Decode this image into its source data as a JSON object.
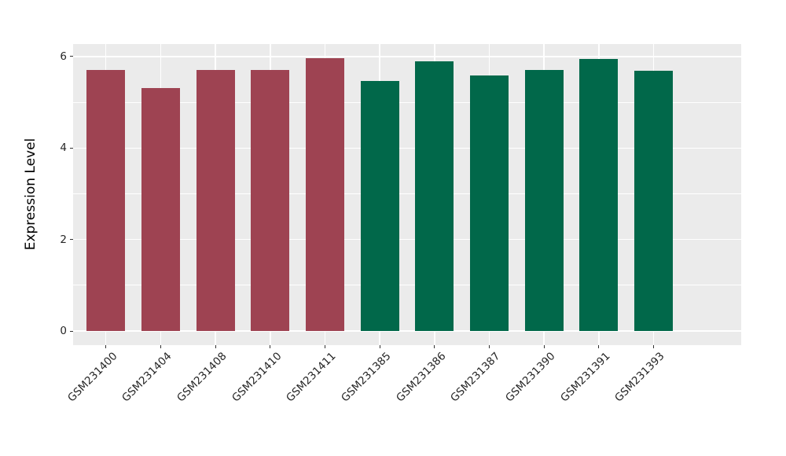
{
  "figure": {
    "background": "#FFFFFF",
    "panel_background": "#EBEBEB",
    "gridline_color": "#FFFFFF",
    "tick_mark_color": "#333333",
    "axis_text_color": "#262626",
    "axis_title_color": "#000000"
  },
  "chart_data": {
    "type": "bar",
    "title": "",
    "xlabel": "",
    "ylabel": "Expression Level",
    "categories": [
      "GSM231400",
      "GSM231404",
      "GSM231408",
      "GSM231410",
      "GSM231411",
      "GSM231385",
      "GSM231386",
      "GSM231387",
      "GSM231390",
      "GSM231391",
      "GSM231393"
    ],
    "values": [
      5.71,
      5.31,
      5.71,
      5.71,
      5.97,
      5.47,
      5.9,
      5.59,
      5.71,
      5.95,
      5.69
    ],
    "groups": [
      "group1",
      "group1",
      "group1",
      "group1",
      "group1",
      "group2",
      "group2",
      "group2",
      "group2",
      "group2",
      "group2"
    ],
    "group_colors": {
      "group1": "#9E4352",
      "group2": "#01684A"
    },
    "y_ticks": [
      0,
      2,
      4,
      6
    ],
    "y_tick_labels": [
      "0",
      "2",
      "4",
      "6"
    ],
    "y_minor_ticks": [
      1,
      3,
      5
    ],
    "ylim": [
      -0.31,
      6.29
    ],
    "grid": true,
    "legend": "none",
    "bar_width_fraction": 0.7,
    "x_label_rotation_deg": 45
  }
}
